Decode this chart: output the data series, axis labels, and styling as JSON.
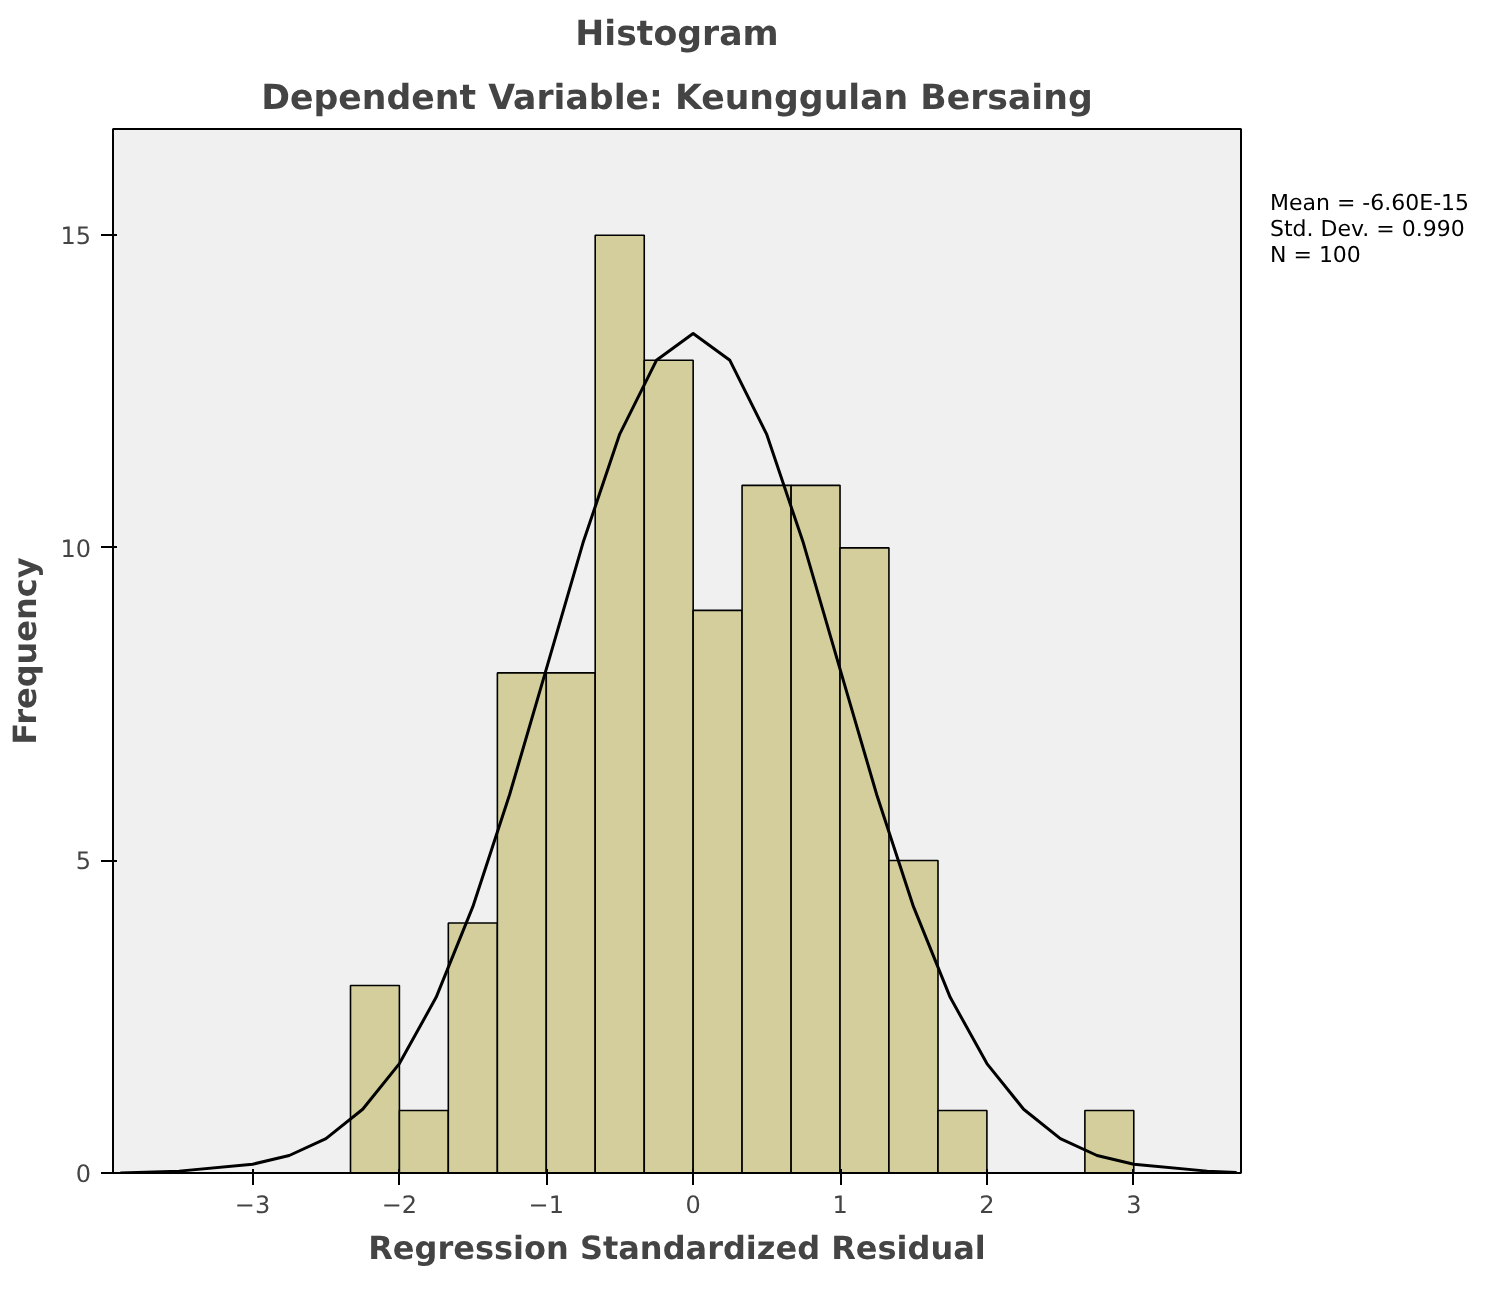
{
  "chart_data": {
    "type": "histogram",
    "title": "Histogram",
    "subtitle": "Dependent Variable: Keunggulan Bersaing",
    "xlabel": "Regression Standardized Residual",
    "ylabel": "Frequency",
    "bins": [
      -2.333,
      -2,
      -1.667,
      -1.333,
      -1,
      -0.667,
      -0.333,
      0,
      0.333,
      0.667,
      1,
      1.333,
      1.667,
      2,
      2.333,
      2.667,
      3
    ],
    "values": [
      3,
      1,
      4,
      8,
      8,
      15,
      13,
      9,
      11,
      11,
      10,
      5,
      1,
      0,
      0,
      1
    ],
    "color": "#d3ce9b",
    "series": [
      {
        "type": "line",
        "color": "#000000",
        "x": [
          -3.9,
          -3.5,
          -3,
          -2.75,
          -2.5,
          -2.25,
          -2,
          -1.75,
          -1.5,
          -1.25,
          -1,
          -0.75,
          -0.5,
          -0.25,
          0,
          0.25,
          0.5,
          0.75,
          1,
          1.25,
          1.5,
          1.75,
          2,
          2.25,
          2.5,
          2.75,
          3,
          3.5,
          3.7
        ],
        "values": [
          0,
          0.03,
          0.14,
          0.28,
          0.55,
          1.02,
          1.75,
          2.81,
          4.26,
          6.05,
          8.06,
          10.08,
          11.82,
          13.0,
          13.43,
          13.0,
          11.82,
          10.08,
          8.06,
          6.05,
          4.26,
          2.81,
          1.75,
          1.02,
          0.55,
          0.28,
          0.14,
          0.03,
          0.01
        ]
      }
    ],
    "xlim": [
      -3.95,
      3.73
    ],
    "ylim": [
      0,
      16.7
    ],
    "xticks": [
      -3,
      -2,
      -1,
      0,
      1,
      2,
      3
    ],
    "yticks": [
      0,
      5,
      10,
      15
    ],
    "annotations": [
      "Mean = -6.60E-15",
      "Std. Dev. = 0.990",
      "N = 100"
    ],
    "grid": false
  }
}
